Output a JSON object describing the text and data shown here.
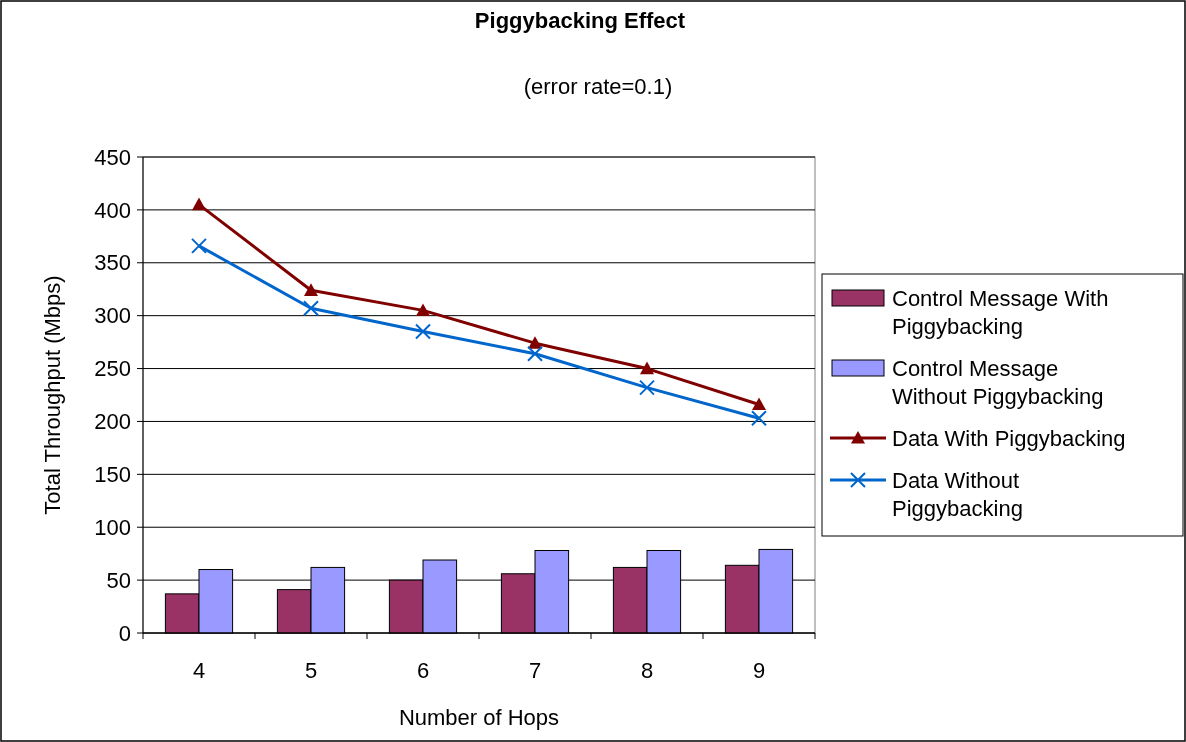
{
  "chart_data": {
    "type": "bar",
    "title": "Piggybacking Effect",
    "subtitle": "(error rate=0.1)",
    "xlabel": "Number of Hops",
    "ylabel": "Total Throughput (Mbps)",
    "categories": [
      "4",
      "5",
      "6",
      "7",
      "8",
      "9"
    ],
    "series": [
      {
        "name": "Control Message With Piggybacking",
        "color": "#993366",
        "values": [
          37,
          41,
          50,
          56,
          62,
          64
        ]
      },
      {
        "name": "Control Message Without Piggybacking",
        "color": "#9999ff",
        "values": [
          60,
          62,
          69,
          78,
          78,
          79
        ]
      },
      {
        "name": "Data With Piggybacking",
        "type": "line",
        "color": "#800000",
        "marker": "triangle",
        "values": [
          405,
          324,
          305,
          274,
          250,
          216
        ]
      },
      {
        "name": "Data Without Piggybacking",
        "type": "line",
        "color": "#0066cc",
        "marker": "cross",
        "values": [
          366,
          307,
          285,
          264,
          232,
          203
        ]
      }
    ],
    "ylim": [
      0,
      450
    ],
    "yticks": [
      0,
      50,
      100,
      150,
      200,
      250,
      300,
      350,
      400,
      450
    ],
    "grid": "y",
    "legend": "right"
  }
}
